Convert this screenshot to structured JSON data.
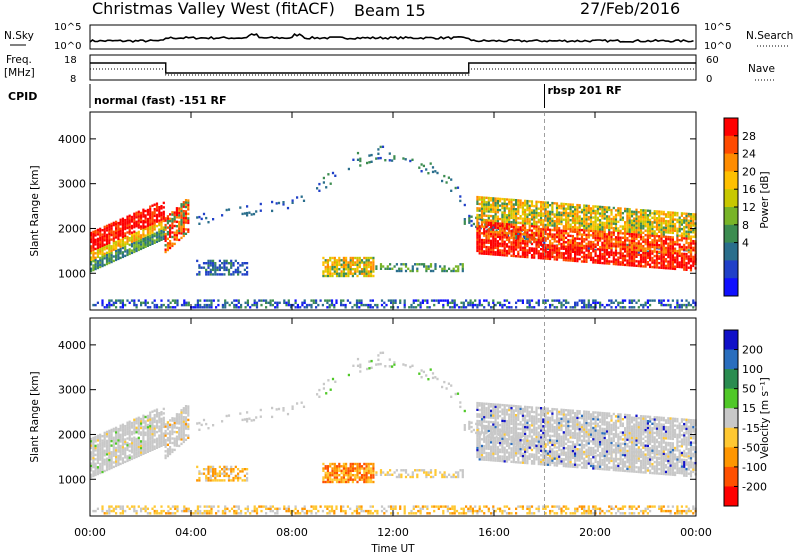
{
  "header": {
    "title": "Christmas Valley West (fitACF)",
    "beam": "Beam 15",
    "date": "27/Feb/2016"
  },
  "top_panels": {
    "nsky_label": "N.Sky",
    "nsky_ticks": [
      "10^5",
      "10^0"
    ],
    "nsearch_label": "N.Search",
    "nsearch_ticks": [
      "10^5",
      "10^0"
    ],
    "freq_label_1": "Freq.",
    "freq_label_2": "[MHz]",
    "freq_ticks": [
      "18",
      "8"
    ],
    "nave_label": "Nave",
    "nave_ticks": [
      "60",
      "0"
    ],
    "cpid_label": "CPID",
    "cpid_modes": [
      {
        "text": "normal (fast) -151 RF",
        "start_hour": 0
      },
      {
        "text": "rbsp 201 RF",
        "start_hour": 18
      }
    ]
  },
  "chart_data": [
    {
      "type": "heatmap",
      "title": "Power",
      "ylabel": "Slant Range [km]",
      "ylim": [
        180,
        4600
      ],
      "yticks": [
        "4000",
        "3000",
        "2000",
        "1000"
      ],
      "yticks_values": [
        4000,
        3000,
        2000,
        1000
      ],
      "colorbar_label": "Power [dB]",
      "colorbar_ticks": [
        "28",
        "24",
        "20",
        "16",
        "12",
        "8",
        "4"
      ],
      "colorbar_values": [
        28,
        24,
        20,
        16,
        12,
        8,
        4
      ],
      "colorbar_colors": [
        "#ff0000",
        "#ff4a00",
        "#ff8c00",
        "#ffc000",
        "#c8c800",
        "#78b428",
        "#3c8c50",
        "#2a6e8c",
        "#2040c8",
        "#1010ff"
      ]
    },
    {
      "type": "heatmap",
      "title": "Velocity",
      "ylabel": "Slant Range [km]",
      "ylim": [
        180,
        4600
      ],
      "yticks": [
        "4000",
        "3000",
        "2000",
        "1000"
      ],
      "yticks_values": [
        4000,
        3000,
        2000,
        1000
      ],
      "colorbar_label": "Velocity [m s⁻¹]",
      "colorbar_ticks": [
        "200",
        "100",
        "50",
        "15",
        "-15",
        "-50",
        "-100",
        "-200"
      ],
      "colorbar_values": [
        200,
        100,
        50,
        15,
        -15,
        -50,
        -100,
        -200
      ],
      "colorbar_colors": [
        "#1010c8",
        "#2a6ebe",
        "#2a8c50",
        "#50c828",
        "#c8c8c8",
        "#ffc832",
        "#ff9600",
        "#ff5000",
        "#ff0000"
      ]
    }
  ],
  "xaxis": {
    "label": "Time UT",
    "ticks": [
      "00:00",
      "04:00",
      "08:00",
      "12:00",
      "16:00",
      "20:00",
      "00:00"
    ],
    "tick_hours": [
      0,
      4,
      8,
      12,
      16,
      20,
      24
    ],
    "marker_hour": 18
  }
}
